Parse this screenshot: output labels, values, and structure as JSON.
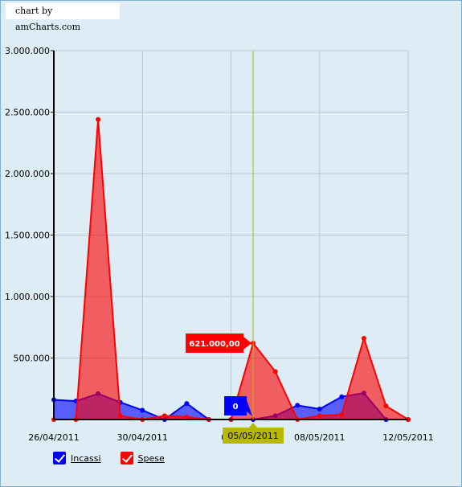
{
  "credit": "chart by amCharts.com",
  "chart_data": {
    "type": "area",
    "x": [
      "26/04/2011",
      "27/04/2011",
      "28/04/2011",
      "29/04/2011",
      "30/04/2011",
      "01/05/2011",
      "02/05/2011",
      "03/05/2011",
      "04/05/2011",
      "05/05/2011",
      "06/05/2011",
      "07/05/2011",
      "08/05/2011",
      "09/05/2011",
      "10/05/2011",
      "11/05/2011",
      "12/05/2011"
    ],
    "x_tick_labels": [
      "26/04/2011",
      "30/04/2011",
      "04/0",
      "08/05/2011",
      "12/05/2011"
    ],
    "y_tick_labels": [
      "3.000.000",
      "2.500.000",
      "2.000.000",
      "1.500.000",
      "1.000.000",
      "500.000"
    ],
    "ylim": [
      0,
      3000000
    ],
    "series": [
      {
        "name": "Incassi",
        "color": "#0000ff",
        "values": [
          160000,
          150000,
          210000,
          140000,
          75000,
          0,
          130000,
          0,
          0,
          0,
          30000,
          115000,
          85000,
          185000,
          215000,
          0,
          0
        ]
      },
      {
        "name": "Spese",
        "color": "#ff0000",
        "values": [
          0,
          0,
          2440000,
          30000,
          0,
          30000,
          20000,
          0,
          0,
          621000,
          390000,
          0,
          30000,
          40000,
          660000,
          110000,
          0
        ]
      }
    ],
    "cursor": {
      "date": "05/05/2011",
      "balloon_incassi": "0",
      "balloon_spese": "621.000,00"
    },
    "grid": true,
    "legend": "bottom-left"
  }
}
